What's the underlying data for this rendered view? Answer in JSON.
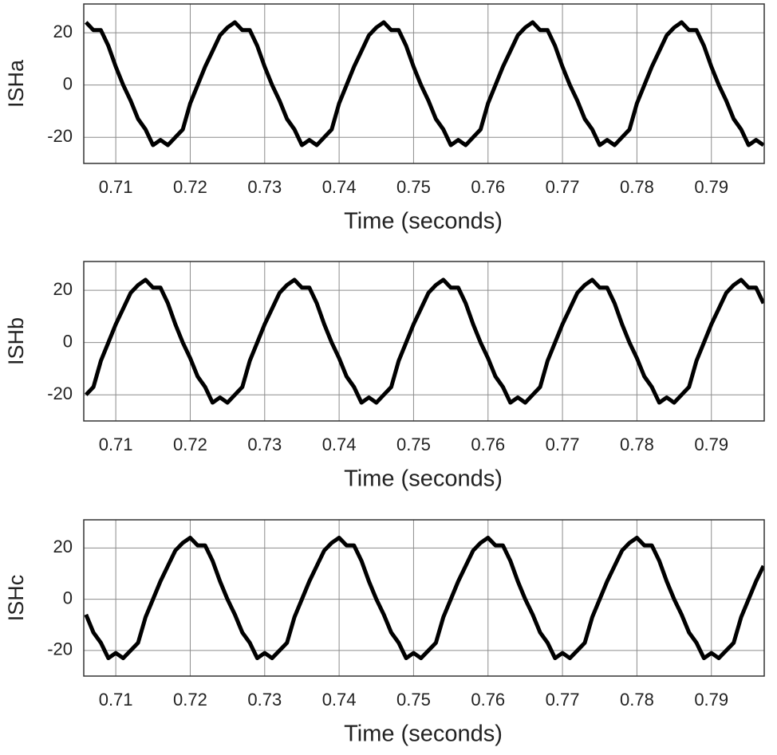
{
  "chart_data": [
    {
      "type": "line",
      "y_label": "ISHa",
      "x_label": "Time (seconds)",
      "xlim": [
        0.7057,
        0.7971
      ],
      "ylim": [
        -30,
        31
      ],
      "grid": true,
      "xticks": [
        0.71,
        0.72,
        0.73,
        0.74,
        0.75,
        0.76,
        0.77,
        0.78,
        0.79
      ],
      "yticks": [
        -20,
        0,
        20
      ],
      "x": [
        0.706,
        0.707,
        0.708,
        0.709,
        0.71,
        0.711,
        0.712,
        0.713,
        0.714,
        0.715,
        0.716,
        0.717,
        0.718,
        0.719,
        0.72,
        0.721,
        0.722,
        0.723,
        0.724,
        0.725,
        0.726,
        0.727,
        0.728,
        0.729,
        0.73,
        0.731,
        0.732,
        0.733,
        0.734,
        0.735,
        0.736,
        0.737,
        0.738,
        0.739,
        0.74,
        0.741,
        0.742,
        0.743,
        0.744,
        0.745,
        0.746,
        0.747,
        0.748,
        0.749,
        0.75,
        0.751,
        0.752,
        0.753,
        0.754,
        0.755,
        0.756,
        0.757,
        0.758,
        0.759,
        0.76,
        0.761,
        0.762,
        0.763,
        0.764,
        0.765,
        0.766,
        0.767,
        0.768,
        0.769,
        0.77,
        0.771,
        0.772,
        0.773,
        0.774,
        0.775,
        0.776,
        0.777,
        0.778,
        0.779,
        0.78,
        0.781,
        0.782,
        0.783,
        0.784,
        0.785,
        0.786,
        0.787,
        0.788,
        0.789,
        0.79,
        0.791,
        0.792,
        0.793,
        0.794,
        0.795,
        0.796,
        0.797
      ],
      "series": [
        {
          "color": "#000000",
          "values": [
            24,
            21,
            21,
            15,
            7,
            0,
            -6,
            -13,
            -17,
            -23,
            -21,
            -23,
            -20,
            -17,
            -7,
            0,
            7,
            13,
            19,
            22,
            24,
            21,
            21,
            15,
            7,
            0,
            -6,
            -13,
            -17,
            -23,
            -21,
            -23,
            -20,
            -17,
            -7,
            0,
            7,
            13,
            19,
            22,
            24,
            21,
            21,
            15,
            7,
            0,
            -6,
            -13,
            -17,
            -23,
            -21,
            -23,
            -20,
            -17,
            -7,
            0,
            7,
            13,
            19,
            22,
            24,
            21,
            21,
            15,
            7,
            0,
            -6,
            -13,
            -17,
            -23,
            -21,
            -23,
            -20,
            -17,
            -7,
            0,
            7,
            13,
            19,
            22,
            24,
            21,
            21,
            15,
            7,
            0,
            -6,
            -13,
            -17,
            -23,
            -21,
            -23
          ]
        }
      ]
    },
    {
      "type": "line",
      "y_label": "ISHb",
      "x_label": "Time (seconds)",
      "xlim": [
        0.7057,
        0.7971
      ],
      "ylim": [
        -30,
        31
      ],
      "grid": true,
      "xticks": [
        0.71,
        0.72,
        0.73,
        0.74,
        0.75,
        0.76,
        0.77,
        0.78,
        0.79
      ],
      "yticks": [
        -20,
        0,
        20
      ],
      "x": [
        0.706,
        0.707,
        0.708,
        0.709,
        0.71,
        0.711,
        0.712,
        0.713,
        0.714,
        0.715,
        0.716,
        0.717,
        0.718,
        0.719,
        0.72,
        0.721,
        0.722,
        0.723,
        0.724,
        0.725,
        0.726,
        0.727,
        0.728,
        0.729,
        0.73,
        0.731,
        0.732,
        0.733,
        0.734,
        0.735,
        0.736,
        0.737,
        0.738,
        0.739,
        0.74,
        0.741,
        0.742,
        0.743,
        0.744,
        0.745,
        0.746,
        0.747,
        0.748,
        0.749,
        0.75,
        0.751,
        0.752,
        0.753,
        0.754,
        0.755,
        0.756,
        0.757,
        0.758,
        0.759,
        0.76,
        0.761,
        0.762,
        0.763,
        0.764,
        0.765,
        0.766,
        0.767,
        0.768,
        0.769,
        0.77,
        0.771,
        0.772,
        0.773,
        0.774,
        0.775,
        0.776,
        0.777,
        0.778,
        0.779,
        0.78,
        0.781,
        0.782,
        0.783,
        0.784,
        0.785,
        0.786,
        0.787,
        0.788,
        0.789,
        0.79,
        0.791,
        0.792,
        0.793,
        0.794,
        0.795,
        0.796,
        0.797
      ],
      "series": [
        {
          "color": "#000000",
          "values": [
            -20,
            -17,
            -7,
            0,
            7,
            13,
            19,
            22,
            24,
            21,
            21,
            15,
            7,
            0,
            -6,
            -13,
            -17,
            -23,
            -21,
            -23,
            -20,
            -17,
            -7,
            0,
            7,
            13,
            19,
            22,
            24,
            21,
            21,
            15,
            7,
            0,
            -6,
            -13,
            -17,
            -23,
            -21,
            -23,
            -20,
            -17,
            -7,
            0,
            7,
            13,
            19,
            22,
            24,
            21,
            21,
            15,
            7,
            0,
            -6,
            -13,
            -17,
            -23,
            -21,
            -23,
            -20,
            -17,
            -7,
            0,
            7,
            13,
            19,
            22,
            24,
            21,
            21,
            15,
            7,
            0,
            -6,
            -13,
            -17,
            -23,
            -21,
            -23,
            -20,
            -17,
            -7,
            0,
            7,
            13,
            19,
            22,
            24,
            21,
            21,
            15
          ]
        }
      ]
    },
    {
      "type": "line",
      "y_label": "ISHc",
      "x_label": "Time (seconds)",
      "xlim": [
        0.7057,
        0.7971
      ],
      "ylim": [
        -30,
        31
      ],
      "grid": true,
      "xticks": [
        0.71,
        0.72,
        0.73,
        0.74,
        0.75,
        0.76,
        0.77,
        0.78,
        0.79
      ],
      "yticks": [
        -20,
        0,
        20
      ],
      "x": [
        0.706,
        0.707,
        0.708,
        0.709,
        0.71,
        0.711,
        0.712,
        0.713,
        0.714,
        0.715,
        0.716,
        0.717,
        0.718,
        0.719,
        0.72,
        0.721,
        0.722,
        0.723,
        0.724,
        0.725,
        0.726,
        0.727,
        0.728,
        0.729,
        0.73,
        0.731,
        0.732,
        0.733,
        0.734,
        0.735,
        0.736,
        0.737,
        0.738,
        0.739,
        0.74,
        0.741,
        0.742,
        0.743,
        0.744,
        0.745,
        0.746,
        0.747,
        0.748,
        0.749,
        0.75,
        0.751,
        0.752,
        0.753,
        0.754,
        0.755,
        0.756,
        0.757,
        0.758,
        0.759,
        0.76,
        0.761,
        0.762,
        0.763,
        0.764,
        0.765,
        0.766,
        0.767,
        0.768,
        0.769,
        0.77,
        0.771,
        0.772,
        0.773,
        0.774,
        0.775,
        0.776,
        0.777,
        0.778,
        0.779,
        0.78,
        0.781,
        0.782,
        0.783,
        0.784,
        0.785,
        0.786,
        0.787,
        0.788,
        0.789,
        0.79,
        0.791,
        0.792,
        0.793,
        0.794,
        0.795,
        0.796,
        0.797
      ],
      "series": [
        {
          "color": "#000000",
          "values": [
            -6,
            -13,
            -17,
            -23,
            -21,
            -23,
            -20,
            -17,
            -7,
            0,
            7,
            13,
            19,
            22,
            24,
            21,
            21,
            15,
            7,
            0,
            -6,
            -13,
            -17,
            -23,
            -21,
            -23,
            -20,
            -17,
            -7,
            0,
            7,
            13,
            19,
            22,
            24,
            21,
            21,
            15,
            7,
            0,
            -6,
            -13,
            -17,
            -23,
            -21,
            -23,
            -20,
            -17,
            -7,
            0,
            7,
            13,
            19,
            22,
            24,
            21,
            21,
            15,
            7,
            0,
            -6,
            -13,
            -17,
            -23,
            -21,
            -23,
            -20,
            -17,
            -7,
            0,
            7,
            13,
            19,
            22,
            24,
            21,
            21,
            15,
            7,
            0,
            -6,
            -13,
            -17,
            -23,
            -21,
            -23,
            -20,
            -17,
            -7,
            0,
            7,
            13
          ]
        }
      ]
    }
  ]
}
